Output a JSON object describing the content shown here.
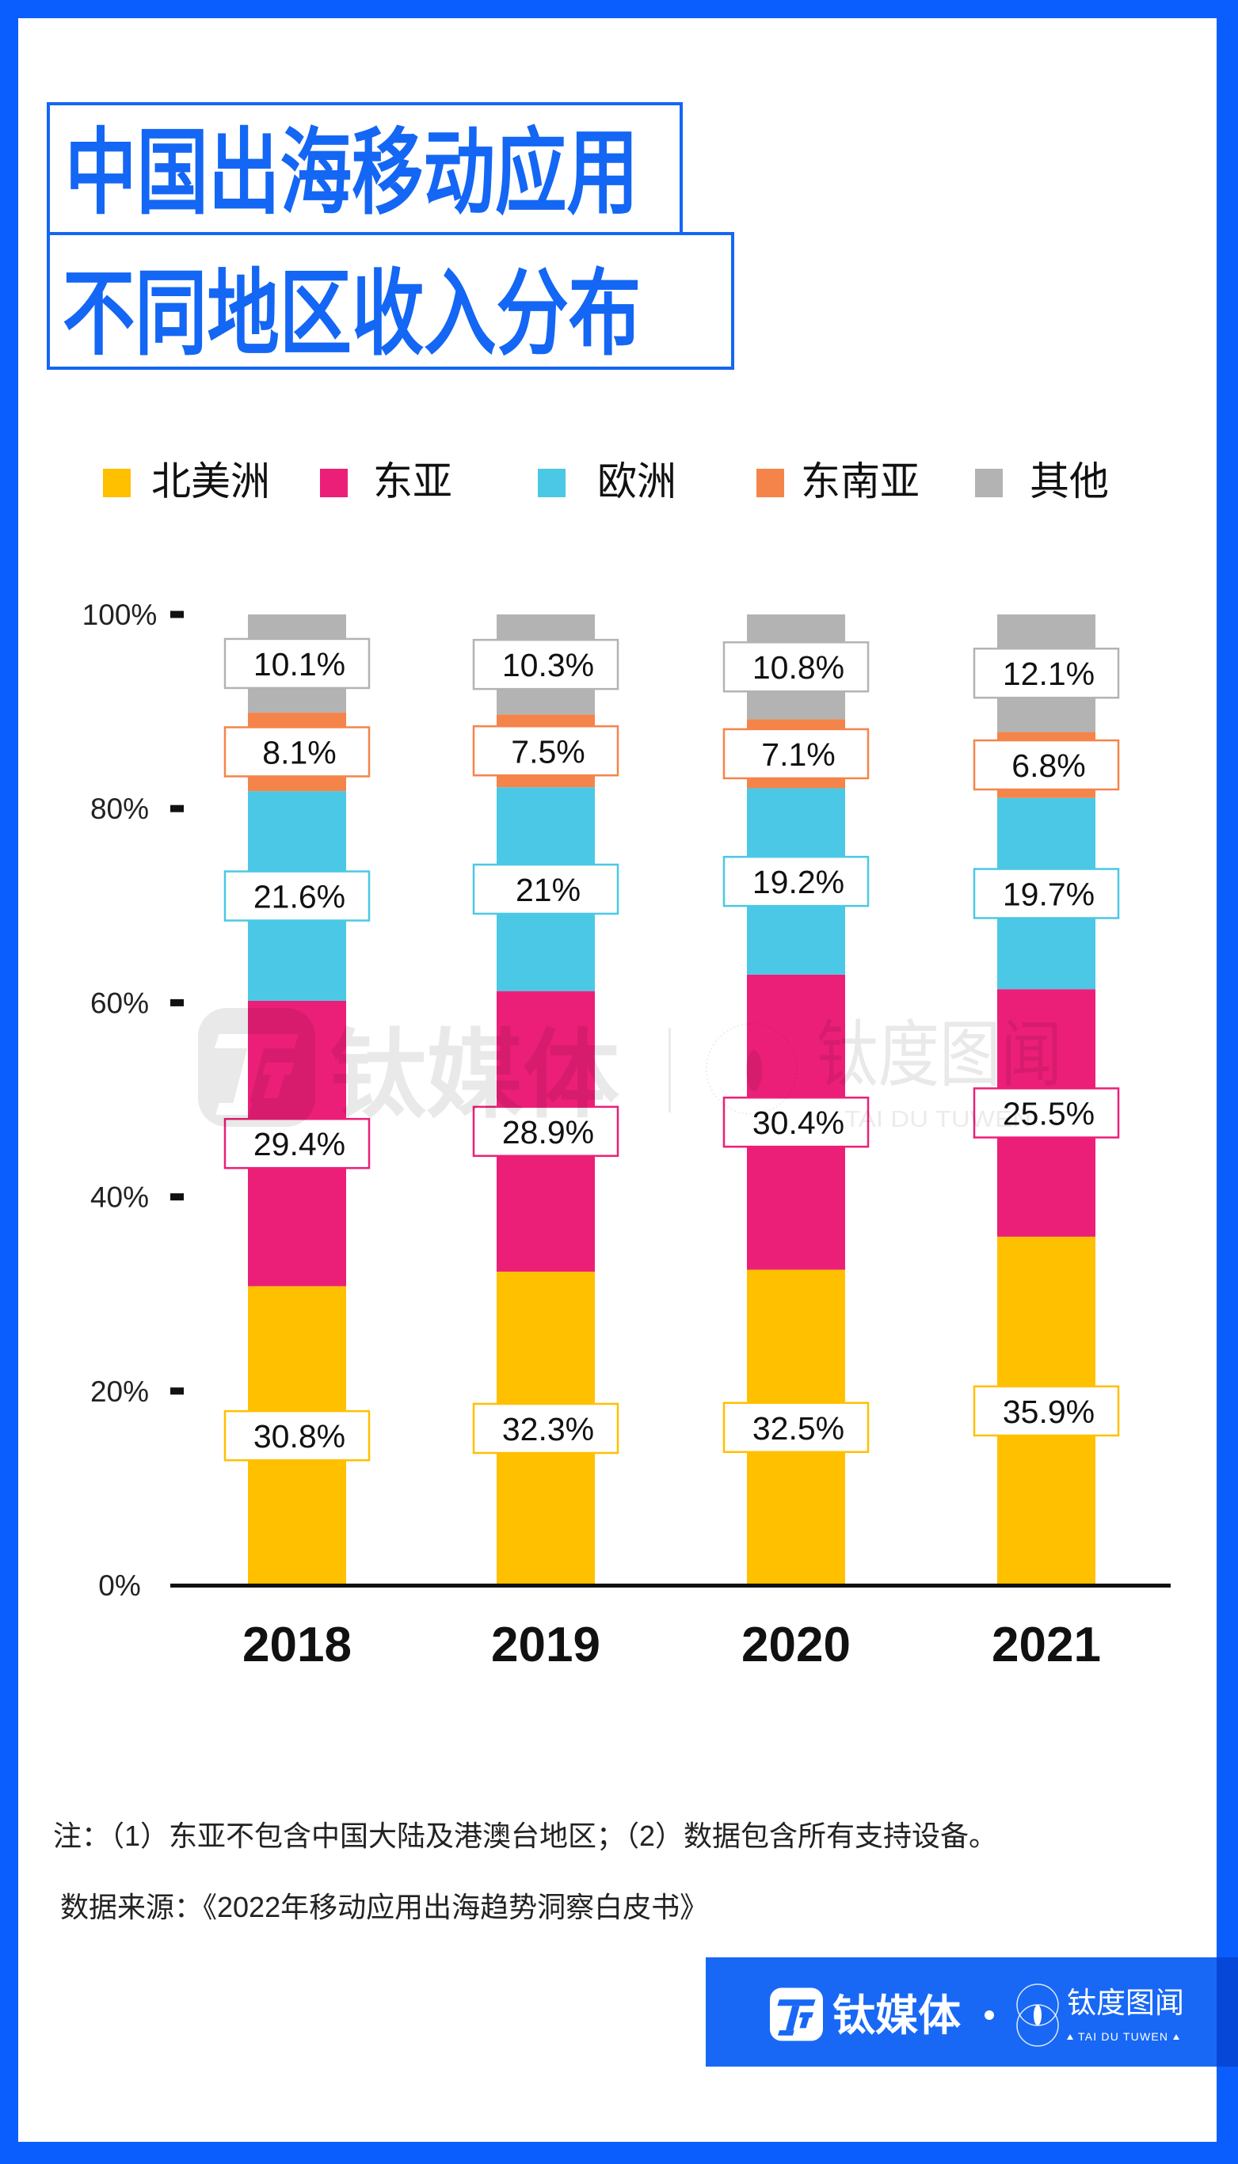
{
  "theme": {
    "frame_color": "#0b5efe",
    "title_color": "#1466f4",
    "banner_color": "#1868f5"
  },
  "title": {
    "line1": "中国出海移动应用",
    "line2": "不同地区收入分布"
  },
  "legend": [
    {
      "label": "北美洲",
      "color": "#ffc000"
    },
    {
      "label": "东亚",
      "color": "#ec1f78"
    },
    {
      "label": "欧洲",
      "color": "#4bc8e5"
    },
    {
      "label": "东南亚",
      "color": "#f5844a"
    },
    {
      "label": "其他",
      "color": "#b3b3b3"
    }
  ],
  "chart_data": {
    "type": "bar",
    "stacked": true,
    "title": "中国出海移动应用不同地区收入分布",
    "xlabel": "",
    "ylabel": "",
    "categories": [
      "2018",
      "2019",
      "2020",
      "2021"
    ],
    "series": [
      {
        "id": "north-america",
        "name": "北美洲",
        "color": "#ffc000",
        "values": [
          30.8,
          32.3,
          32.5,
          35.9
        ],
        "labels": [
          "30.8%",
          "32.3%",
          "32.5%",
          "35.9%"
        ]
      },
      {
        "id": "east-asia",
        "name": "东亚",
        "color": "#ec1f78",
        "values": [
          29.4,
          28.9,
          30.4,
          25.5
        ],
        "labels": [
          "29.4%",
          "28.9%",
          "30.4%",
          "25.5%"
        ]
      },
      {
        "id": "europe",
        "name": "欧洲",
        "color": "#4bc8e5",
        "values": [
          21.6,
          21.0,
          19.2,
          19.7
        ],
        "labels": [
          "21.6%",
          "21%",
          "19.2%",
          "19.7%"
        ]
      },
      {
        "id": "southeast-asia",
        "name": "东南亚",
        "color": "#f5844a",
        "values": [
          8.1,
          7.5,
          7.1,
          6.8
        ],
        "labels": [
          "8.1%",
          "7.5%",
          "7.1%",
          "6.8%"
        ]
      },
      {
        "id": "other",
        "name": "其他",
        "color": "#b3b3b3",
        "values": [
          10.1,
          10.3,
          10.8,
          12.1
        ],
        "labels": [
          "10.1%",
          "10.3%",
          "10.8%",
          "12.1%"
        ]
      }
    ],
    "ylim": [
      0,
      100
    ],
    "yticks": [
      0,
      20,
      40,
      60,
      80,
      100
    ],
    "ytick_labels": [
      "0%",
      "20%",
      "40%",
      "60%",
      "80%",
      "100%"
    ],
    "unit": "%",
    "legend_position": "top",
    "grid": false
  },
  "watermark": {
    "brand": "钛媒体",
    "sub_brand": "钛度图闻",
    "sub_brand_latin": "TAI DU TUWEN",
    "icons": [
      "tmtpost-logo-icon",
      "taidu-circle-logo-icon"
    ]
  },
  "notes": {
    "note": "注：（1）东亚不包含中国大陆及港澳台地区；（2）数据包含所有支持设备。",
    "source": "数据来源：《2022年移动应用出海趋势洞察白皮书》"
  },
  "footer_banner": {
    "brand": "钛媒体",
    "sub_brand": "钛度图闻",
    "tagline": "TAI DU TUWEN",
    "icons": [
      "tmtpost-logo-icon",
      "separator-dot-icon",
      "taidu-circle-logo-icon",
      "triangle-icon"
    ]
  }
}
